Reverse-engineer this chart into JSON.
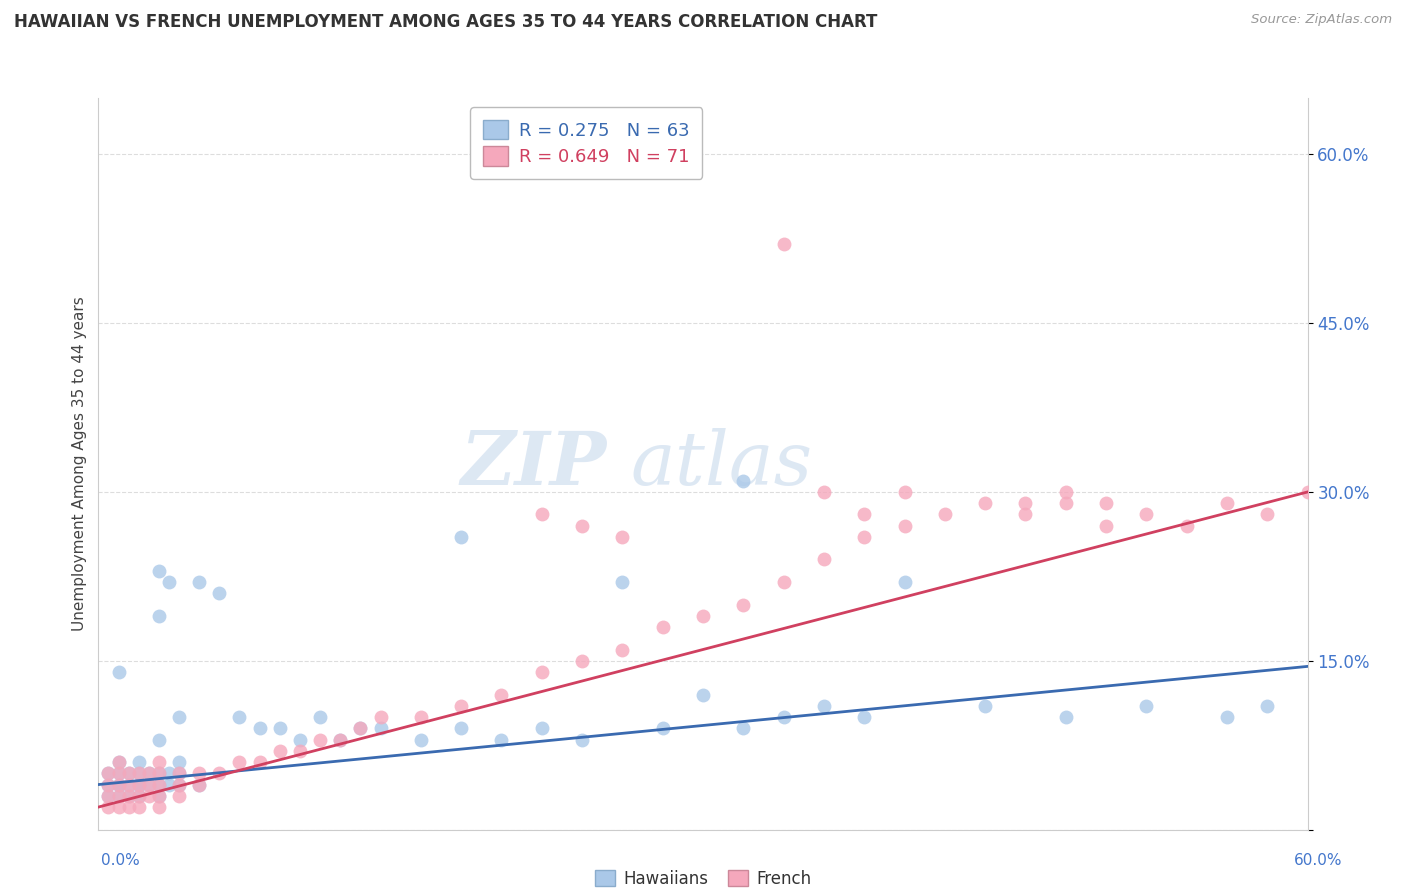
{
  "title": "HAWAIIAN VS FRENCH UNEMPLOYMENT AMONG AGES 35 TO 44 YEARS CORRELATION CHART",
  "source": "Source: ZipAtlas.com",
  "xlabel_bottom_left": "0.0%",
  "xlabel_bottom_right": "60.0%",
  "ylabel": "Unemployment Among Ages 35 to 44 years",
  "yticks": [
    0.0,
    0.15,
    0.3,
    0.45,
    0.6
  ],
  "ytick_labels": [
    "",
    "15.0%",
    "30.0%",
    "45.0%",
    "60.0%"
  ],
  "xlim": [
    0.0,
    0.6
  ],
  "ylim": [
    0.0,
    0.65
  ],
  "hawaiian_color": "#aac8e8",
  "french_color": "#f5a8bc",
  "hawaiian_line_color": "#3a6ab0",
  "french_line_color": "#d04060",
  "watermark_zip": "ZIP",
  "watermark_atlas": "atlas",
  "hawaiian_x": [
    0.005,
    0.005,
    0.005,
    0.01,
    0.01,
    0.01,
    0.01,
    0.01,
    0.01,
    0.015,
    0.015,
    0.015,
    0.02,
    0.02,
    0.02,
    0.02,
    0.02,
    0.025,
    0.025,
    0.03,
    0.03,
    0.03,
    0.03,
    0.03,
    0.03,
    0.035,
    0.035,
    0.035,
    0.04,
    0.04,
    0.04,
    0.04,
    0.05,
    0.05,
    0.06,
    0.07,
    0.08,
    0.09,
    0.1,
    0.11,
    0.12,
    0.13,
    0.14,
    0.16,
    0.18,
    0.2,
    0.22,
    0.24,
    0.26,
    0.28,
    0.3,
    0.32,
    0.34,
    0.36,
    0.38,
    0.4,
    0.44,
    0.48,
    0.52,
    0.56,
    0.58,
    0.32,
    0.18
  ],
  "hawaiian_y": [
    0.03,
    0.04,
    0.05,
    0.03,
    0.04,
    0.04,
    0.05,
    0.06,
    0.14,
    0.03,
    0.04,
    0.05,
    0.03,
    0.04,
    0.05,
    0.06,
    0.04,
    0.04,
    0.05,
    0.03,
    0.04,
    0.05,
    0.08,
    0.19,
    0.23,
    0.04,
    0.05,
    0.22,
    0.04,
    0.05,
    0.06,
    0.1,
    0.04,
    0.22,
    0.21,
    0.1,
    0.09,
    0.09,
    0.08,
    0.1,
    0.08,
    0.09,
    0.09,
    0.08,
    0.09,
    0.08,
    0.09,
    0.08,
    0.22,
    0.09,
    0.12,
    0.09,
    0.1,
    0.11,
    0.1,
    0.22,
    0.11,
    0.1,
    0.11,
    0.1,
    0.11,
    0.31,
    0.26
  ],
  "french_x": [
    0.005,
    0.005,
    0.005,
    0.005,
    0.01,
    0.01,
    0.01,
    0.01,
    0.01,
    0.015,
    0.015,
    0.015,
    0.015,
    0.02,
    0.02,
    0.02,
    0.02,
    0.025,
    0.025,
    0.025,
    0.03,
    0.03,
    0.03,
    0.03,
    0.03,
    0.04,
    0.04,
    0.04,
    0.05,
    0.05,
    0.06,
    0.07,
    0.08,
    0.09,
    0.1,
    0.11,
    0.12,
    0.13,
    0.14,
    0.16,
    0.18,
    0.2,
    0.22,
    0.24,
    0.26,
    0.28,
    0.3,
    0.32,
    0.34,
    0.36,
    0.38,
    0.4,
    0.42,
    0.44,
    0.46,
    0.48,
    0.5,
    0.52,
    0.54,
    0.56,
    0.58,
    0.6,
    0.36,
    0.38,
    0.4,
    0.22,
    0.24,
    0.26,
    0.46,
    0.48,
    0.5
  ],
  "french_y": [
    0.02,
    0.03,
    0.04,
    0.05,
    0.02,
    0.03,
    0.04,
    0.05,
    0.06,
    0.02,
    0.03,
    0.04,
    0.05,
    0.02,
    0.03,
    0.04,
    0.05,
    0.03,
    0.04,
    0.05,
    0.02,
    0.03,
    0.04,
    0.05,
    0.06,
    0.03,
    0.04,
    0.05,
    0.04,
    0.05,
    0.05,
    0.06,
    0.06,
    0.07,
    0.07,
    0.08,
    0.08,
    0.09,
    0.1,
    0.1,
    0.11,
    0.12,
    0.14,
    0.15,
    0.16,
    0.18,
    0.19,
    0.2,
    0.22,
    0.24,
    0.26,
    0.27,
    0.28,
    0.29,
    0.28,
    0.29,
    0.27,
    0.28,
    0.27,
    0.29,
    0.28,
    0.3,
    0.3,
    0.28,
    0.3,
    0.28,
    0.27,
    0.26,
    0.29,
    0.3,
    0.29
  ],
  "french_outlier_x": [
    0.34
  ],
  "french_outlier_y": [
    0.52
  ],
  "hawaiian_line_x0": 0.0,
  "hawaiian_line_y0": 0.04,
  "hawaiian_line_x1": 0.6,
  "hawaiian_line_y1": 0.145,
  "french_line_x0": 0.0,
  "french_line_y0": 0.02,
  "french_line_x1": 0.6,
  "french_line_y1": 0.3
}
